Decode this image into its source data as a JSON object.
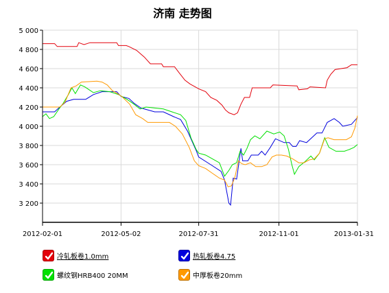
{
  "chart_data": {
    "type": "line",
    "title": "济南 走势图",
    "xlabel": "",
    "ylabel": "",
    "x_ticks": [
      "2012-02-01",
      "2012-05-02",
      "2012-07-31",
      "2012-11-01",
      "2013-01-31"
    ],
    "y_ticks": [
      "3 200",
      "3 400",
      "3 600",
      "3 800",
      "4 000",
      "4 200",
      "4 400",
      "4 600",
      "4 800",
      "5 000"
    ],
    "xlim": [
      "2012-02-01",
      "2013-01-31"
    ],
    "ylim": [
      3000,
      5000
    ],
    "grid": true,
    "legend_position": "bottom",
    "series": [
      {
        "name": "冷轧板卷1.0mm",
        "color": "#e3000b",
        "underline": true,
        "points": [
          [
            "2012-02-01",
            4860
          ],
          [
            "2012-02-15",
            4860
          ],
          [
            "2012-02-18",
            4830
          ],
          [
            "2012-03-12",
            4830
          ],
          [
            "2012-03-14",
            4870
          ],
          [
            "2012-03-20",
            4850
          ],
          [
            "2012-03-27",
            4870
          ],
          [
            "2012-04-27",
            4870
          ],
          [
            "2012-04-29",
            4840
          ],
          [
            "2012-05-08",
            4840
          ],
          [
            "2012-05-11",
            4830
          ],
          [
            "2012-05-20",
            4790
          ],
          [
            "2012-05-29",
            4720
          ],
          [
            "2012-06-05",
            4650
          ],
          [
            "2012-06-18",
            4650
          ],
          [
            "2012-06-20",
            4620
          ],
          [
            "2012-07-03",
            4620
          ],
          [
            "2012-07-08",
            4560
          ],
          [
            "2012-07-15",
            4480
          ],
          [
            "2012-07-21",
            4440
          ],
          [
            "2012-07-31",
            4390
          ],
          [
            "2012-08-08",
            4360
          ],
          [
            "2012-08-14",
            4300
          ],
          [
            "2012-08-21",
            4270
          ],
          [
            "2012-08-27",
            4220
          ],
          [
            "2012-08-31",
            4170
          ],
          [
            "2012-09-04",
            4140
          ],
          [
            "2012-09-10",
            4120
          ],
          [
            "2012-09-14",
            4140
          ],
          [
            "2012-09-18",
            4230
          ],
          [
            "2012-09-22",
            4300
          ],
          [
            "2012-09-28",
            4300
          ],
          [
            "2012-10-01",
            4400
          ],
          [
            "2012-10-22",
            4400
          ],
          [
            "2012-10-25",
            4430
          ],
          [
            "2012-11-22",
            4420
          ],
          [
            "2012-11-24",
            4380
          ],
          [
            "2012-12-04",
            4390
          ],
          [
            "2012-12-07",
            4410
          ],
          [
            "2012-12-25",
            4400
          ],
          [
            "2012-12-27",
            4480
          ],
          [
            "2012-12-31",
            4540
          ],
          [
            "2013-01-05",
            4590
          ],
          [
            "2013-01-19",
            4610
          ],
          [
            "2013-01-24",
            4640
          ],
          [
            "2013-01-31",
            4640
          ]
        ]
      },
      {
        "name": "热轧板卷4.75",
        "color": "#0000dd",
        "underline": true,
        "points": [
          [
            "2012-02-01",
            4150
          ],
          [
            "2012-02-15",
            4150
          ],
          [
            "2012-02-21",
            4200
          ],
          [
            "2012-02-29",
            4260
          ],
          [
            "2012-03-08",
            4280
          ],
          [
            "2012-03-22",
            4280
          ],
          [
            "2012-03-31",
            4330
          ],
          [
            "2012-04-10",
            4360
          ],
          [
            "2012-04-27",
            4360
          ],
          [
            "2012-05-02",
            4310
          ],
          [
            "2012-05-11",
            4290
          ],
          [
            "2012-05-17",
            4240
          ],
          [
            "2012-05-25",
            4190
          ],
          [
            "2012-06-10",
            4150
          ],
          [
            "2012-06-20",
            4150
          ],
          [
            "2012-07-02",
            4100
          ],
          [
            "2012-07-10",
            4070
          ],
          [
            "2012-07-18",
            3950
          ],
          [
            "2012-07-28",
            3750
          ],
          [
            "2012-07-31",
            3680
          ],
          [
            "2012-08-14",
            3600
          ],
          [
            "2012-08-26",
            3530
          ],
          [
            "2012-08-30",
            3440
          ],
          [
            "2012-09-04",
            3200
          ],
          [
            "2012-09-06",
            3180
          ],
          [
            "2012-09-09",
            3460
          ],
          [
            "2012-09-13",
            3450
          ],
          [
            "2012-09-18",
            3770
          ],
          [
            "2012-09-20",
            3640
          ],
          [
            "2012-09-26",
            3640
          ],
          [
            "2012-09-30",
            3700
          ],
          [
            "2012-10-08",
            3700
          ],
          [
            "2012-10-12",
            3740
          ],
          [
            "2012-10-16",
            3700
          ],
          [
            "2012-10-22",
            3780
          ],
          [
            "2012-10-28",
            3870
          ],
          [
            "2012-11-07",
            3830
          ],
          [
            "2012-11-13",
            3830
          ],
          [
            "2012-11-17",
            3790
          ],
          [
            "2012-11-21",
            3790
          ],
          [
            "2012-11-25",
            3850
          ],
          [
            "2012-12-03",
            3830
          ],
          [
            "2012-12-09",
            3880
          ],
          [
            "2012-12-15",
            3930
          ],
          [
            "2012-12-21",
            3930
          ],
          [
            "2012-12-27",
            4040
          ],
          [
            "2013-01-04",
            4080
          ],
          [
            "2013-01-10",
            4040
          ],
          [
            "2013-01-14",
            4000
          ],
          [
            "2013-01-24",
            4020
          ],
          [
            "2013-01-28",
            4060
          ],
          [
            "2013-01-31",
            4090
          ]
        ]
      },
      {
        "name": "螺纹钢HRB400 20MM",
        "color": "#00e000",
        "underline": false,
        "points": [
          [
            "2012-02-01",
            4100
          ],
          [
            "2012-02-05",
            4130
          ],
          [
            "2012-02-09",
            4080
          ],
          [
            "2012-02-14",
            4100
          ],
          [
            "2012-02-20",
            4180
          ],
          [
            "2012-02-25",
            4240
          ],
          [
            "2012-03-02",
            4330
          ],
          [
            "2012-03-06",
            4400
          ],
          [
            "2012-03-10",
            4340
          ],
          [
            "2012-03-16",
            4430
          ],
          [
            "2012-03-21",
            4410
          ],
          [
            "2012-03-26",
            4380
          ],
          [
            "2012-03-31",
            4350
          ],
          [
            "2012-04-08",
            4370
          ],
          [
            "2012-04-19",
            4360
          ],
          [
            "2012-04-29",
            4330
          ],
          [
            "2012-05-09",
            4280
          ],
          [
            "2012-05-17",
            4230
          ],
          [
            "2012-05-24",
            4180
          ],
          [
            "2012-05-31",
            4200
          ],
          [
            "2012-06-10",
            4190
          ],
          [
            "2012-06-20",
            4180
          ],
          [
            "2012-06-30",
            4150
          ],
          [
            "2012-07-10",
            4120
          ],
          [
            "2012-07-16",
            4060
          ],
          [
            "2012-07-22",
            3880
          ],
          [
            "2012-07-28",
            3760
          ],
          [
            "2012-07-31",
            3720
          ],
          [
            "2012-08-08",
            3700
          ],
          [
            "2012-08-16",
            3660
          ],
          [
            "2012-08-24",
            3620
          ],
          [
            "2012-08-30",
            3480
          ],
          [
            "2012-09-04",
            3540
          ],
          [
            "2012-09-08",
            3600
          ],
          [
            "2012-09-13",
            3620
          ],
          [
            "2012-09-17",
            3740
          ],
          [
            "2012-09-21",
            3700
          ],
          [
            "2012-09-25",
            3770
          ],
          [
            "2012-09-29",
            3860
          ],
          [
            "2012-10-04",
            3900
          ],
          [
            "2012-10-10",
            3870
          ],
          [
            "2012-10-18",
            3950
          ],
          [
            "2012-10-26",
            3920
          ],
          [
            "2012-11-02",
            3940
          ],
          [
            "2012-11-07",
            3900
          ],
          [
            "2012-11-12",
            3760
          ],
          [
            "2012-11-16",
            3600
          ],
          [
            "2012-11-19",
            3500
          ],
          [
            "2012-11-24",
            3580
          ],
          [
            "2012-12-01",
            3630
          ],
          [
            "2012-12-08",
            3690
          ],
          [
            "2012-12-12",
            3650
          ],
          [
            "2012-12-18",
            3720
          ],
          [
            "2012-12-24",
            3880
          ],
          [
            "2012-12-29",
            3780
          ],
          [
            "2013-01-06",
            3740
          ],
          [
            "2013-01-16",
            3740
          ],
          [
            "2013-01-22",
            3760
          ],
          [
            "2013-01-27",
            3780
          ],
          [
            "2013-01-31",
            3810
          ]
        ]
      },
      {
        "name": "中厚板卷20mm",
        "color": "#ff9900",
        "underline": false,
        "points": [
          [
            "2012-02-01",
            4200
          ],
          [
            "2012-02-21",
            4200
          ],
          [
            "2012-02-27",
            4250
          ],
          [
            "2012-03-05",
            4400
          ],
          [
            "2012-03-11",
            4420
          ],
          [
            "2012-03-17",
            4460
          ],
          [
            "2012-04-04",
            4470
          ],
          [
            "2012-04-10",
            4460
          ],
          [
            "2012-04-16",
            4430
          ],
          [
            "2012-04-22",
            4370
          ],
          [
            "2012-04-28",
            4340
          ],
          [
            "2012-05-04",
            4300
          ],
          [
            "2012-05-12",
            4230
          ],
          [
            "2012-05-19",
            4120
          ],
          [
            "2012-05-27",
            4080
          ],
          [
            "2012-06-02",
            4040
          ],
          [
            "2012-06-27",
            4040
          ],
          [
            "2012-07-04",
            4000
          ],
          [
            "2012-07-12",
            3920
          ],
          [
            "2012-07-20",
            3780
          ],
          [
            "2012-07-26",
            3640
          ],
          [
            "2012-07-31",
            3590
          ],
          [
            "2012-08-08",
            3560
          ],
          [
            "2012-08-16",
            3510
          ],
          [
            "2012-08-24",
            3460
          ],
          [
            "2012-08-30",
            3440
          ],
          [
            "2012-09-03",
            3370
          ],
          [
            "2012-09-07",
            3380
          ],
          [
            "2012-09-11",
            3470
          ],
          [
            "2012-09-15",
            3640
          ],
          [
            "2012-09-19",
            3610
          ],
          [
            "2012-09-23",
            3600
          ],
          [
            "2012-09-29",
            3620
          ],
          [
            "2012-10-05",
            3580
          ],
          [
            "2012-10-12",
            3580
          ],
          [
            "2012-10-18",
            3600
          ],
          [
            "2012-10-24",
            3680
          ],
          [
            "2012-10-29",
            3700
          ],
          [
            "2012-11-04",
            3700
          ],
          [
            "2012-11-10",
            3690
          ],
          [
            "2012-11-17",
            3660
          ],
          [
            "2012-11-24",
            3620
          ],
          [
            "2012-11-30",
            3620
          ],
          [
            "2012-12-06",
            3650
          ],
          [
            "2012-12-12",
            3660
          ],
          [
            "2012-12-18",
            3720
          ],
          [
            "2012-12-24",
            3870
          ],
          [
            "2012-12-28",
            3880
          ],
          [
            "2013-01-04",
            3860
          ],
          [
            "2013-01-18",
            3860
          ],
          [
            "2013-01-24",
            3890
          ],
          [
            "2013-01-28",
            3980
          ],
          [
            "2013-01-31",
            4110
          ]
        ]
      }
    ]
  }
}
